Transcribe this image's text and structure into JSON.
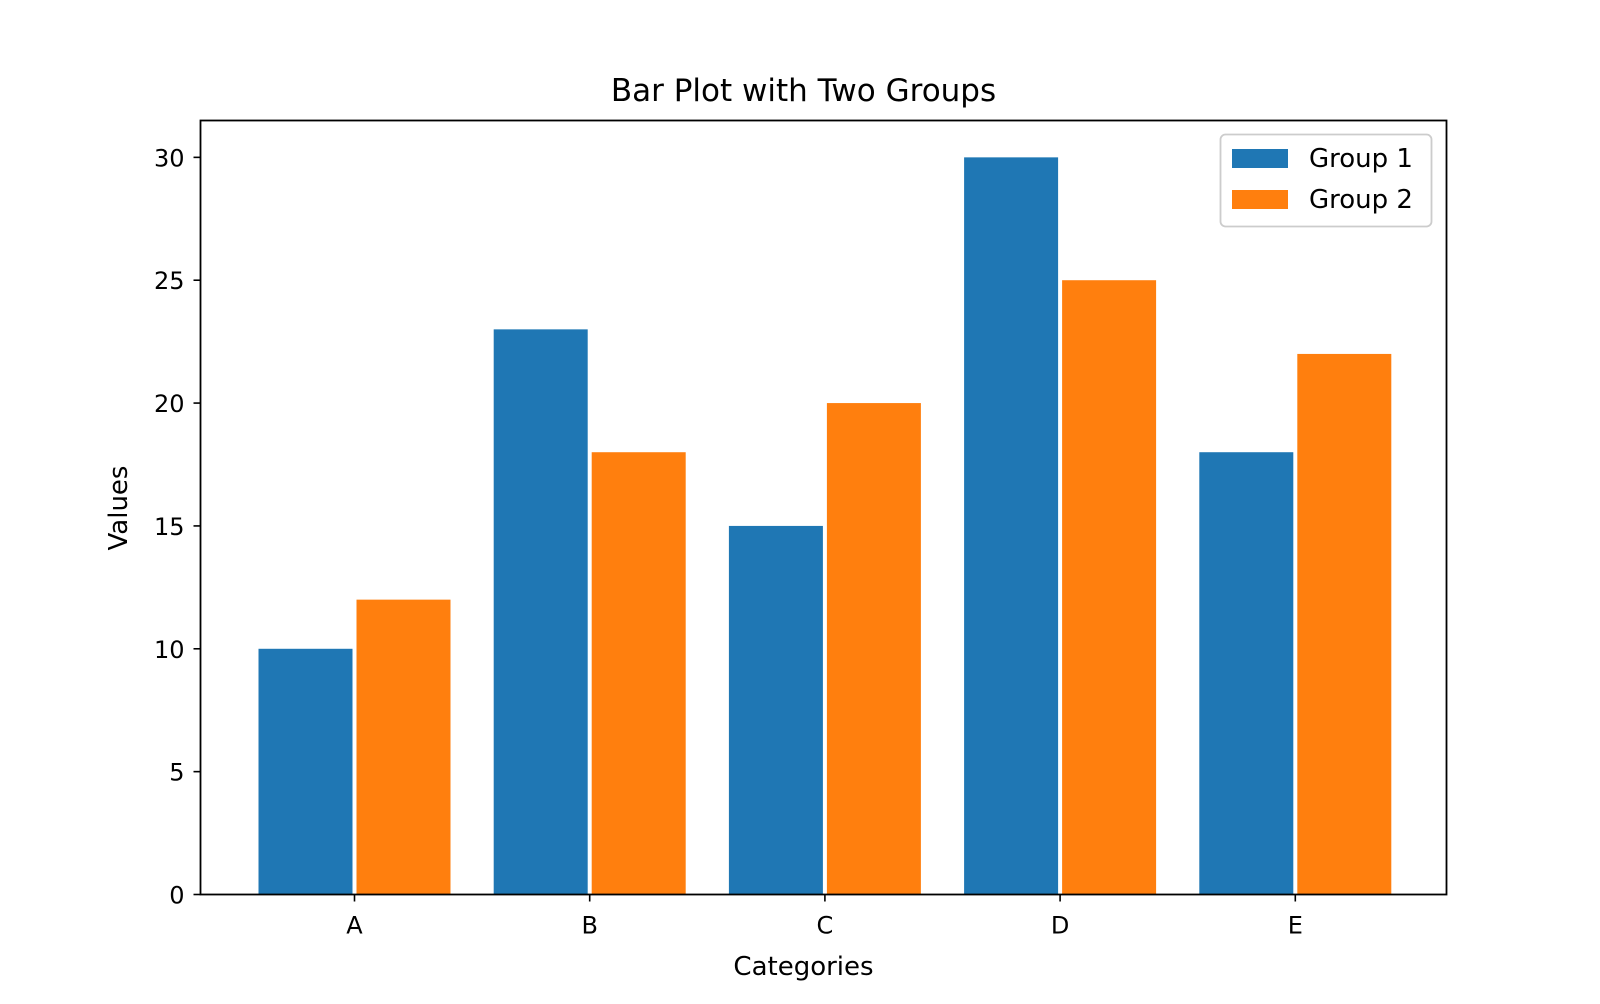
{
  "chart_data": {
    "type": "bar",
    "title": "Bar Plot with Two Groups",
    "xlabel": "Categories",
    "ylabel": "Values",
    "categories": [
      "A",
      "B",
      "C",
      "D",
      "E"
    ],
    "series": [
      {
        "name": "Group 1",
        "color": "#1f77b4",
        "values": [
          10,
          23,
          15,
          30,
          18
        ]
      },
      {
        "name": "Group 2",
        "color": "#ff7f0e",
        "values": [
          12,
          18,
          20,
          25,
          22
        ]
      }
    ],
    "ylim": [
      0,
      31.5
    ],
    "yticks": [
      0,
      5,
      10,
      15,
      20,
      25,
      30
    ],
    "grid": false,
    "legend_position": "top-right"
  }
}
